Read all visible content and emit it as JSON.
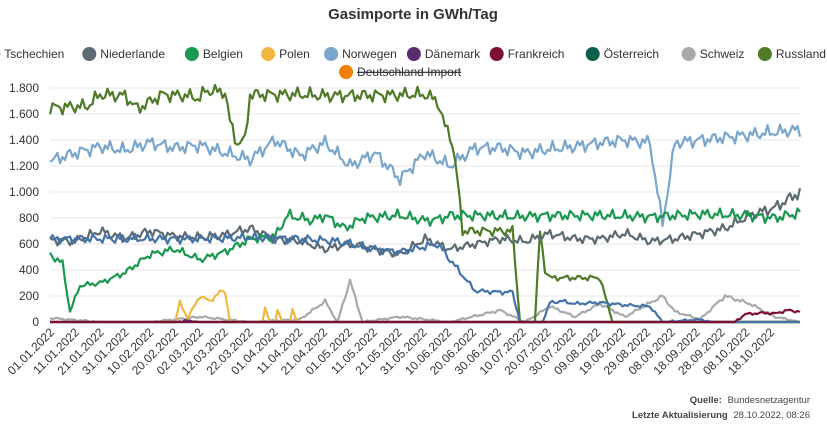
{
  "chart_data": {
    "type": "line",
    "title": "Gasimporte in GWh/Tag",
    "xlabel": "",
    "ylabel": "",
    "ylim": [
      0,
      1800
    ],
    "y_ticks": [
      0,
      200,
      400,
      600,
      800,
      1000,
      1200,
      1400,
      1600,
      1800
    ],
    "y_tick_labels": [
      "0",
      "200",
      "400",
      "600",
      "800",
      "1.000",
      "1.200",
      "1.400",
      "1.600",
      "1.800"
    ],
    "x_tick_labels": [
      "01.01.2022",
      "11.01.2022",
      "21.01.2022",
      "31.01.2022",
      "10.02.2022",
      "20.02.2022",
      "02.03.2022",
      "12.03.2022",
      "22.03.2022",
      "01.04.2022",
      "11.04.2022",
      "21.04.2022",
      "01.05.2022",
      "11.05.2022",
      "21.05.2022",
      "31.05.2022",
      "10.06.2022",
      "20.06.2022",
      "30.06.2022",
      "10.07.2022",
      "20.07.2022",
      "30.07.2022",
      "09.08.2022",
      "19.08.2022",
      "29.08.2022",
      "08.09.2022",
      "18.09.2022",
      "28.09.2022",
      "08.10.2022",
      "18.10.2022"
    ],
    "x_days": 300,
    "series": [
      {
        "name": "Tschechien",
        "color": "#4572a7",
        "hidden": false,
        "draw_order": 8,
        "points": [
          [
            0,
            640
          ],
          [
            60,
            640
          ],
          [
            80,
            650
          ],
          [
            100,
            640
          ],
          [
            115,
            620
          ],
          [
            120,
            600
          ],
          [
            130,
            560
          ],
          [
            140,
            540
          ],
          [
            155,
            600
          ],
          [
            160,
            480
          ],
          [
            170,
            240
          ],
          [
            180,
            230
          ],
          [
            185,
            230
          ],
          [
            188,
            0
          ],
          [
            197,
            0
          ],
          [
            200,
            150
          ],
          [
            205,
            160
          ],
          [
            210,
            140
          ],
          [
            220,
            150
          ],
          [
            230,
            130
          ],
          [
            240,
            120
          ],
          [
            245,
            0
          ],
          [
            260,
            20
          ],
          [
            265,
            0
          ],
          [
            300,
            0
          ]
        ]
      },
      {
        "name": "Niederlande",
        "color": "#5c6a72",
        "hidden": false,
        "draw_order": 6,
        "points": [
          [
            0,
            630
          ],
          [
            10,
            620
          ],
          [
            20,
            700
          ],
          [
            30,
            640
          ],
          [
            40,
            700
          ],
          [
            50,
            660
          ],
          [
            60,
            650
          ],
          [
            70,
            670
          ],
          [
            80,
            720
          ],
          [
            90,
            640
          ],
          [
            100,
            620
          ],
          [
            110,
            560
          ],
          [
            120,
            600
          ],
          [
            130,
            560
          ],
          [
            140,
            520
          ],
          [
            150,
            640
          ],
          [
            160,
            560
          ],
          [
            170,
            600
          ],
          [
            180,
            640
          ],
          [
            190,
            620
          ],
          [
            200,
            680
          ],
          [
            210,
            640
          ],
          [
            220,
            640
          ],
          [
            230,
            680
          ],
          [
            240,
            620
          ],
          [
            250,
            640
          ],
          [
            260,
            680
          ],
          [
            270,
            720
          ],
          [
            280,
            820
          ],
          [
            290,
            880
          ],
          [
            300,
            1000
          ]
        ]
      },
      {
        "name": "Belgien",
        "color": "#1a9850",
        "hidden": false,
        "draw_order": 7,
        "points": [
          [
            0,
            520
          ],
          [
            5,
            450
          ],
          [
            8,
            80
          ],
          [
            12,
            280
          ],
          [
            20,
            300
          ],
          [
            30,
            380
          ],
          [
            40,
            520
          ],
          [
            50,
            560
          ],
          [
            60,
            480
          ],
          [
            70,
            540
          ],
          [
            80,
            640
          ],
          [
            90,
            660
          ],
          [
            95,
            820
          ],
          [
            105,
            780
          ],
          [
            110,
            820
          ],
          [
            118,
            720
          ],
          [
            125,
            800
          ],
          [
            140,
            820
          ],
          [
            150,
            780
          ],
          [
            155,
            790
          ],
          [
            160,
            820
          ],
          [
            175,
            820
          ],
          [
            185,
            810
          ],
          [
            200,
            820
          ],
          [
            220,
            820
          ],
          [
            240,
            810
          ],
          [
            260,
            830
          ],
          [
            280,
            820
          ],
          [
            290,
            800
          ],
          [
            300,
            840
          ]
        ]
      },
      {
        "name": "Polen",
        "color": "#f0b840",
        "hidden": false,
        "draw_order": 2,
        "points": [
          [
            0,
            0
          ],
          [
            50,
            0
          ],
          [
            52,
            150
          ],
          [
            55,
            30
          ],
          [
            60,
            200
          ],
          [
            64,
            160
          ],
          [
            68,
            230
          ],
          [
            70,
            240
          ],
          [
            72,
            0
          ],
          [
            85,
            0
          ],
          [
            86,
            120
          ],
          [
            88,
            0
          ],
          [
            90,
            0
          ],
          [
            91,
            100
          ],
          [
            93,
            0
          ],
          [
            96,
            0
          ],
          [
            97,
            100
          ],
          [
            99,
            0
          ],
          [
            300,
            0
          ]
        ]
      },
      {
        "name": "Norwegen",
        "color": "#7aa6cc",
        "hidden": false,
        "draw_order": 3,
        "points": [
          [
            0,
            1240
          ],
          [
            10,
            1300
          ],
          [
            20,
            1350
          ],
          [
            30,
            1320
          ],
          [
            40,
            1380
          ],
          [
            50,
            1340
          ],
          [
            60,
            1360
          ],
          [
            70,
            1300
          ],
          [
            80,
            1250
          ],
          [
            90,
            1400
          ],
          [
            100,
            1280
          ],
          [
            110,
            1380
          ],
          [
            120,
            1200
          ],
          [
            130,
            1300
          ],
          [
            140,
            1100
          ],
          [
            150,
            1300
          ],
          [
            160,
            1200
          ],
          [
            170,
            1340
          ],
          [
            180,
            1340
          ],
          [
            190,
            1300
          ],
          [
            200,
            1330
          ],
          [
            210,
            1350
          ],
          [
            220,
            1380
          ],
          [
            230,
            1400
          ],
          [
            240,
            1380
          ],
          [
            245,
            750
          ],
          [
            250,
            1380
          ],
          [
            260,
            1400
          ],
          [
            270,
            1420
          ],
          [
            280,
            1440
          ],
          [
            290,
            1460
          ],
          [
            300,
            1480
          ]
        ]
      },
      {
        "name": "Dänemark",
        "color": "#5b2c6f",
        "hidden": false,
        "draw_order": 4,
        "points": [
          [
            0,
            0
          ],
          [
            50,
            0
          ],
          [
            55,
            10
          ],
          [
            60,
            0
          ],
          [
            300,
            0
          ]
        ]
      },
      {
        "name": "Frankreich",
        "color": "#7b1032",
        "hidden": false,
        "draw_order": 9,
        "points": [
          [
            0,
            0
          ],
          [
            274,
            0
          ],
          [
            278,
            60
          ],
          [
            285,
            70
          ],
          [
            290,
            65
          ],
          [
            295,
            90
          ],
          [
            300,
            80
          ]
        ]
      },
      {
        "name": "Österreich",
        "color": "#0b5e4a",
        "hidden": false,
        "draw_order": 1,
        "points": [
          [
            0,
            0
          ],
          [
            300,
            0
          ]
        ]
      },
      {
        "name": "Schweiz",
        "color": "#a7a9ac",
        "hidden": false,
        "draw_order": 0,
        "points": [
          [
            0,
            30
          ],
          [
            20,
            0
          ],
          [
            40,
            0
          ],
          [
            60,
            40
          ],
          [
            80,
            0
          ],
          [
            100,
            20
          ],
          [
            110,
            160
          ],
          [
            115,
            0
          ],
          [
            120,
            320
          ],
          [
            125,
            0
          ],
          [
            140,
            40
          ],
          [
            160,
            0
          ],
          [
            180,
            90
          ],
          [
            190,
            0
          ],
          [
            200,
            120
          ],
          [
            210,
            40
          ],
          [
            220,
            140
          ],
          [
            230,
            40
          ],
          [
            245,
            200
          ],
          [
            250,
            80
          ],
          [
            260,
            20
          ],
          [
            270,
            200
          ],
          [
            280,
            140
          ],
          [
            290,
            40
          ],
          [
            300,
            0
          ]
        ]
      },
      {
        "name": "Russland",
        "color": "#4f7a28",
        "hidden": false,
        "draw_order": 5,
        "points": [
          [
            0,
            1650
          ],
          [
            15,
            1660
          ],
          [
            20,
            1750
          ],
          [
            30,
            1740
          ],
          [
            35,
            1640
          ],
          [
            45,
            1750
          ],
          [
            55,
            1740
          ],
          [
            60,
            1720
          ],
          [
            62,
            1780
          ],
          [
            70,
            1770
          ],
          [
            72,
            1540
          ],
          [
            75,
            1370
          ],
          [
            78,
            1400
          ],
          [
            80,
            1750
          ],
          [
            100,
            1750
          ],
          [
            110,
            1740
          ],
          [
            150,
            1750
          ],
          [
            155,
            1700
          ],
          [
            158,
            1500
          ],
          [
            160,
            1450
          ],
          [
            162,
            1250
          ],
          [
            164,
            900
          ],
          [
            165,
            700
          ],
          [
            185,
            700
          ],
          [
            188,
            0
          ],
          [
            194,
            0
          ],
          [
            196,
            700
          ],
          [
            198,
            400
          ],
          [
            200,
            340
          ],
          [
            220,
            340
          ],
          [
            225,
            0
          ],
          [
            300,
            0
          ]
        ]
      },
      {
        "name": "Deutschland Import",
        "color": "#f07f0a",
        "hidden": true,
        "draw_order": 10,
        "points": []
      }
    ]
  },
  "footer": {
    "source_label": "Quelle:",
    "source_value": "Bundesnetzagentur",
    "updated_label": "Letzte Aktualisierung",
    "updated_value": "28.10.2022, 08:26"
  }
}
